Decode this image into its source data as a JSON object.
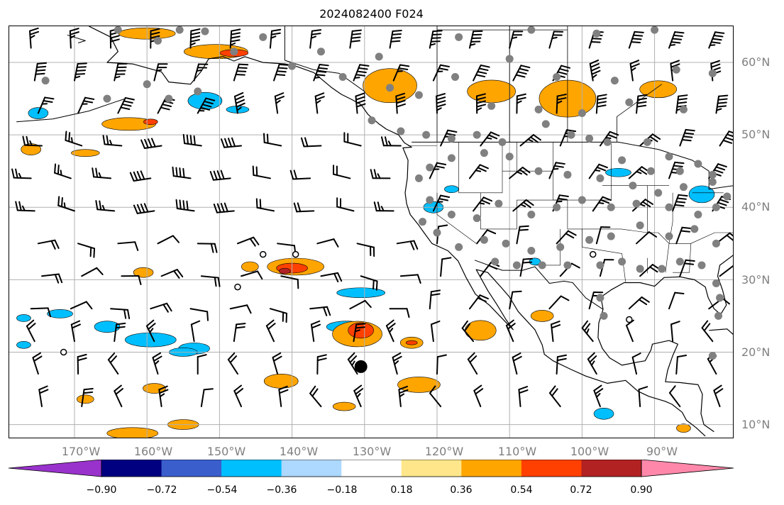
{
  "title": "2024082400 F024",
  "lat_labels": [
    "60°N",
    "50°N",
    "40°N",
    "30°N",
    "20°N",
    "10°N"
  ],
  "lon_labels": [
    "170°W",
    "160°W",
    "150°W",
    "140°W",
    "130°W",
    "120°W",
    "110°W",
    "100°W",
    "90°W"
  ],
  "colorbar": {
    "ticks": [
      "−0.90",
      "−0.72",
      "−0.54",
      "−0.36",
      "−0.18",
      "0.18",
      "0.36",
      "0.54",
      "0.72",
      "0.90"
    ],
    "tick_values": [
      -0.9,
      -0.72,
      -0.54,
      -0.36,
      -0.18,
      0.18,
      0.36,
      0.54,
      0.72,
      0.9
    ],
    "colors": [
      "#9932cc",
      "#000080",
      "#3a5fcd",
      "#00bfff",
      "#add8ff",
      "#ffffff",
      "#ffe68a",
      "#ffa500",
      "#ff4000",
      "#b22222",
      "#ff88aa"
    ]
  },
  "map": {
    "extent": {
      "lon_min": -179,
      "lon_max": -79,
      "lat_min": 8,
      "lat_max": 65
    },
    "grid_lon": [
      -170,
      -160,
      -150,
      -140,
      -130,
      -120,
      -110,
      -100,
      -90
    ],
    "grid_lat": [
      10,
      20,
      30,
      40,
      50,
      60
    ],
    "hollow_marker_coords": [
      [
        -144,
        33.5
      ],
      [
        -139.5,
        33.5
      ],
      [
        -147.5,
        29
      ],
      [
        -171.5,
        20
      ],
      [
        -98.5,
        33.5
      ],
      [
        -93.5,
        24.5
      ]
    ],
    "large_marker_coord": [
      -130.5,
      18
    ]
  }
}
